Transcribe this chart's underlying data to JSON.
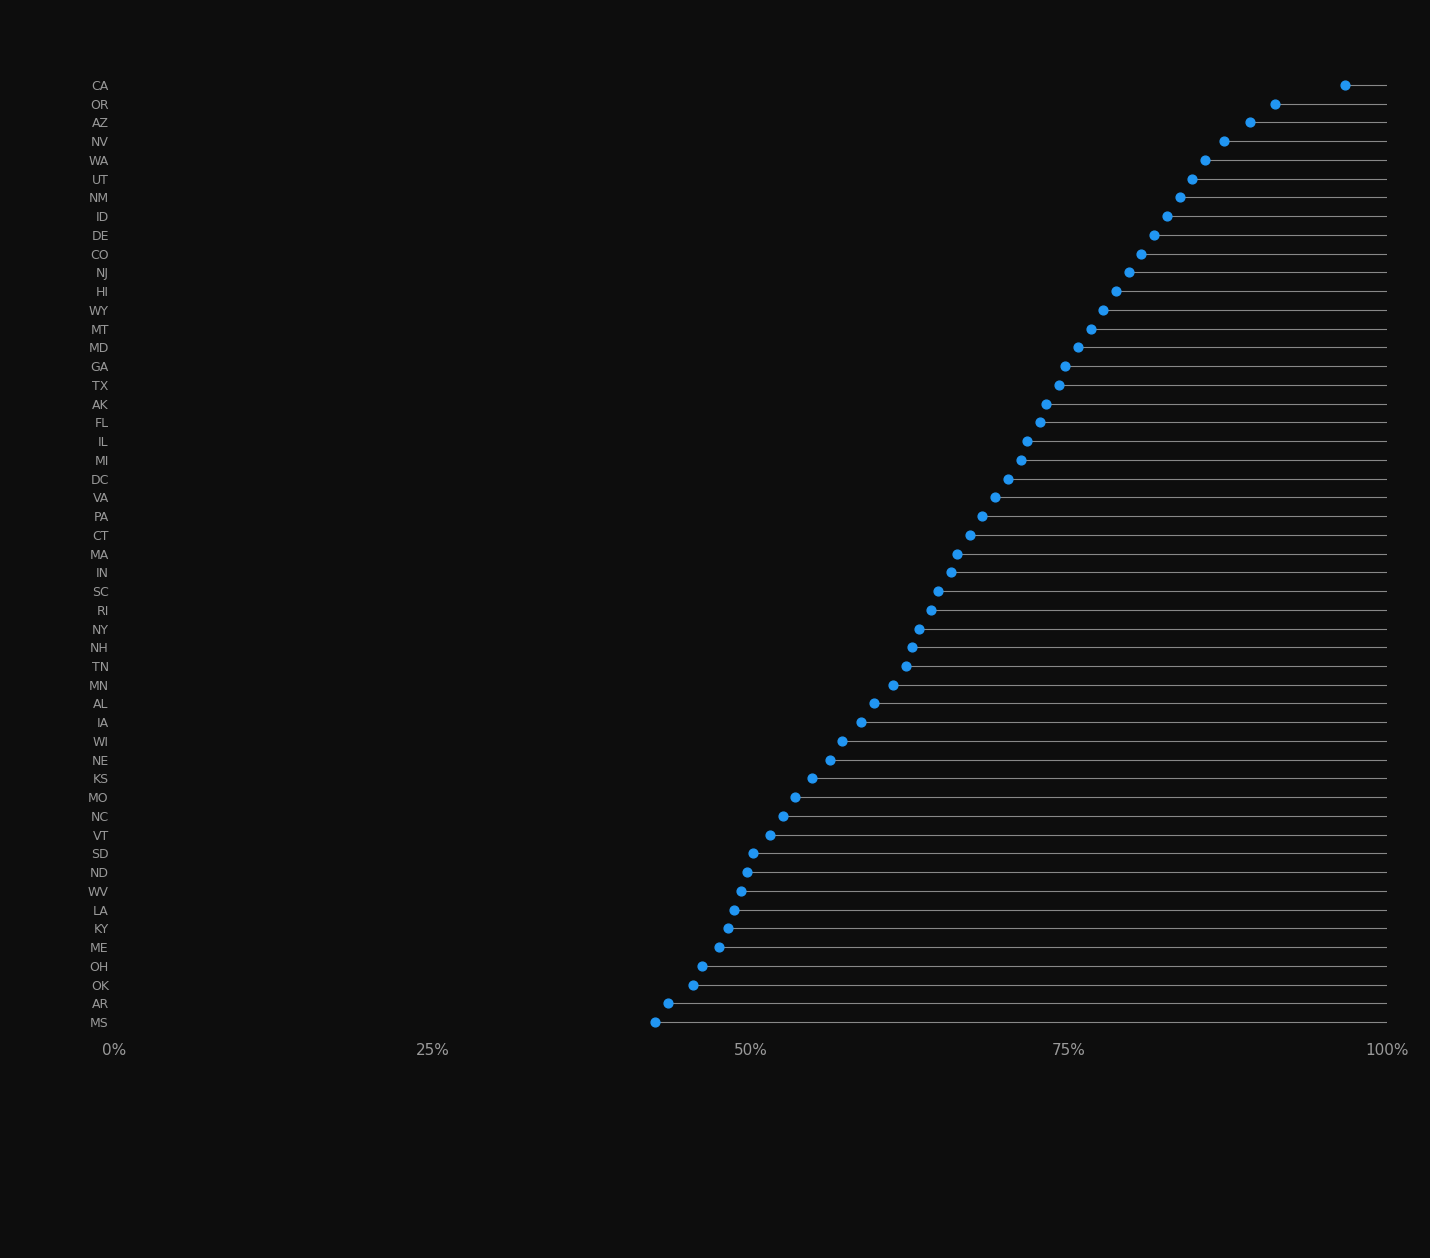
{
  "states": [
    "MS",
    "AR",
    "OK",
    "OH",
    "ME",
    "KY",
    "LA",
    "WV",
    "ND",
    "SD",
    "VT",
    "NC",
    "MO",
    "KS",
    "NE",
    "WI",
    "IA",
    "AL",
    "MN",
    "TN",
    "NH",
    "NY",
    "RI",
    "SC",
    "IN",
    "MA",
    "CT",
    "PA",
    "VA",
    "DC",
    "MI",
    "IL",
    "FL",
    "AK",
    "TX",
    "GA",
    "MD",
    "MT",
    "WY",
    "HI",
    "NJ",
    "CO",
    "DE",
    "ID",
    "NM",
    "UT",
    "WA",
    "NV",
    "AZ",
    "OR",
    "CA"
  ],
  "values": [
    42.5,
    43.5,
    45.5,
    46.2,
    47.5,
    48.2,
    48.7,
    49.2,
    49.7,
    50.2,
    51.5,
    52.5,
    53.5,
    54.8,
    56.2,
    57.2,
    58.7,
    59.7,
    61.2,
    62.2,
    62.7,
    63.2,
    64.2,
    64.7,
    65.7,
    66.2,
    67.2,
    68.2,
    69.2,
    70.2,
    71.2,
    71.7,
    72.7,
    73.2,
    74.2,
    74.7,
    75.7,
    76.7,
    77.7,
    78.7,
    79.7,
    80.7,
    81.7,
    82.7,
    83.7,
    84.7,
    85.7,
    87.2,
    89.2,
    91.2,
    96.7
  ],
  "dot_color": "#2196F3",
  "line_color": "#888888",
  "background_color": "#0d0d0d",
  "text_color": "#999999",
  "xlabel_color": "#999999",
  "xmin": 0,
  "xmax": 100,
  "xticks": [
    0,
    25,
    50,
    75,
    100
  ],
  "xtick_labels": [
    "0%",
    "25%",
    "50%",
    "75%",
    "100%"
  ],
  "dot_size": 40,
  "line_extend_to": 100,
  "label_fontsize": 9,
  "xtick_fontsize": 11
}
